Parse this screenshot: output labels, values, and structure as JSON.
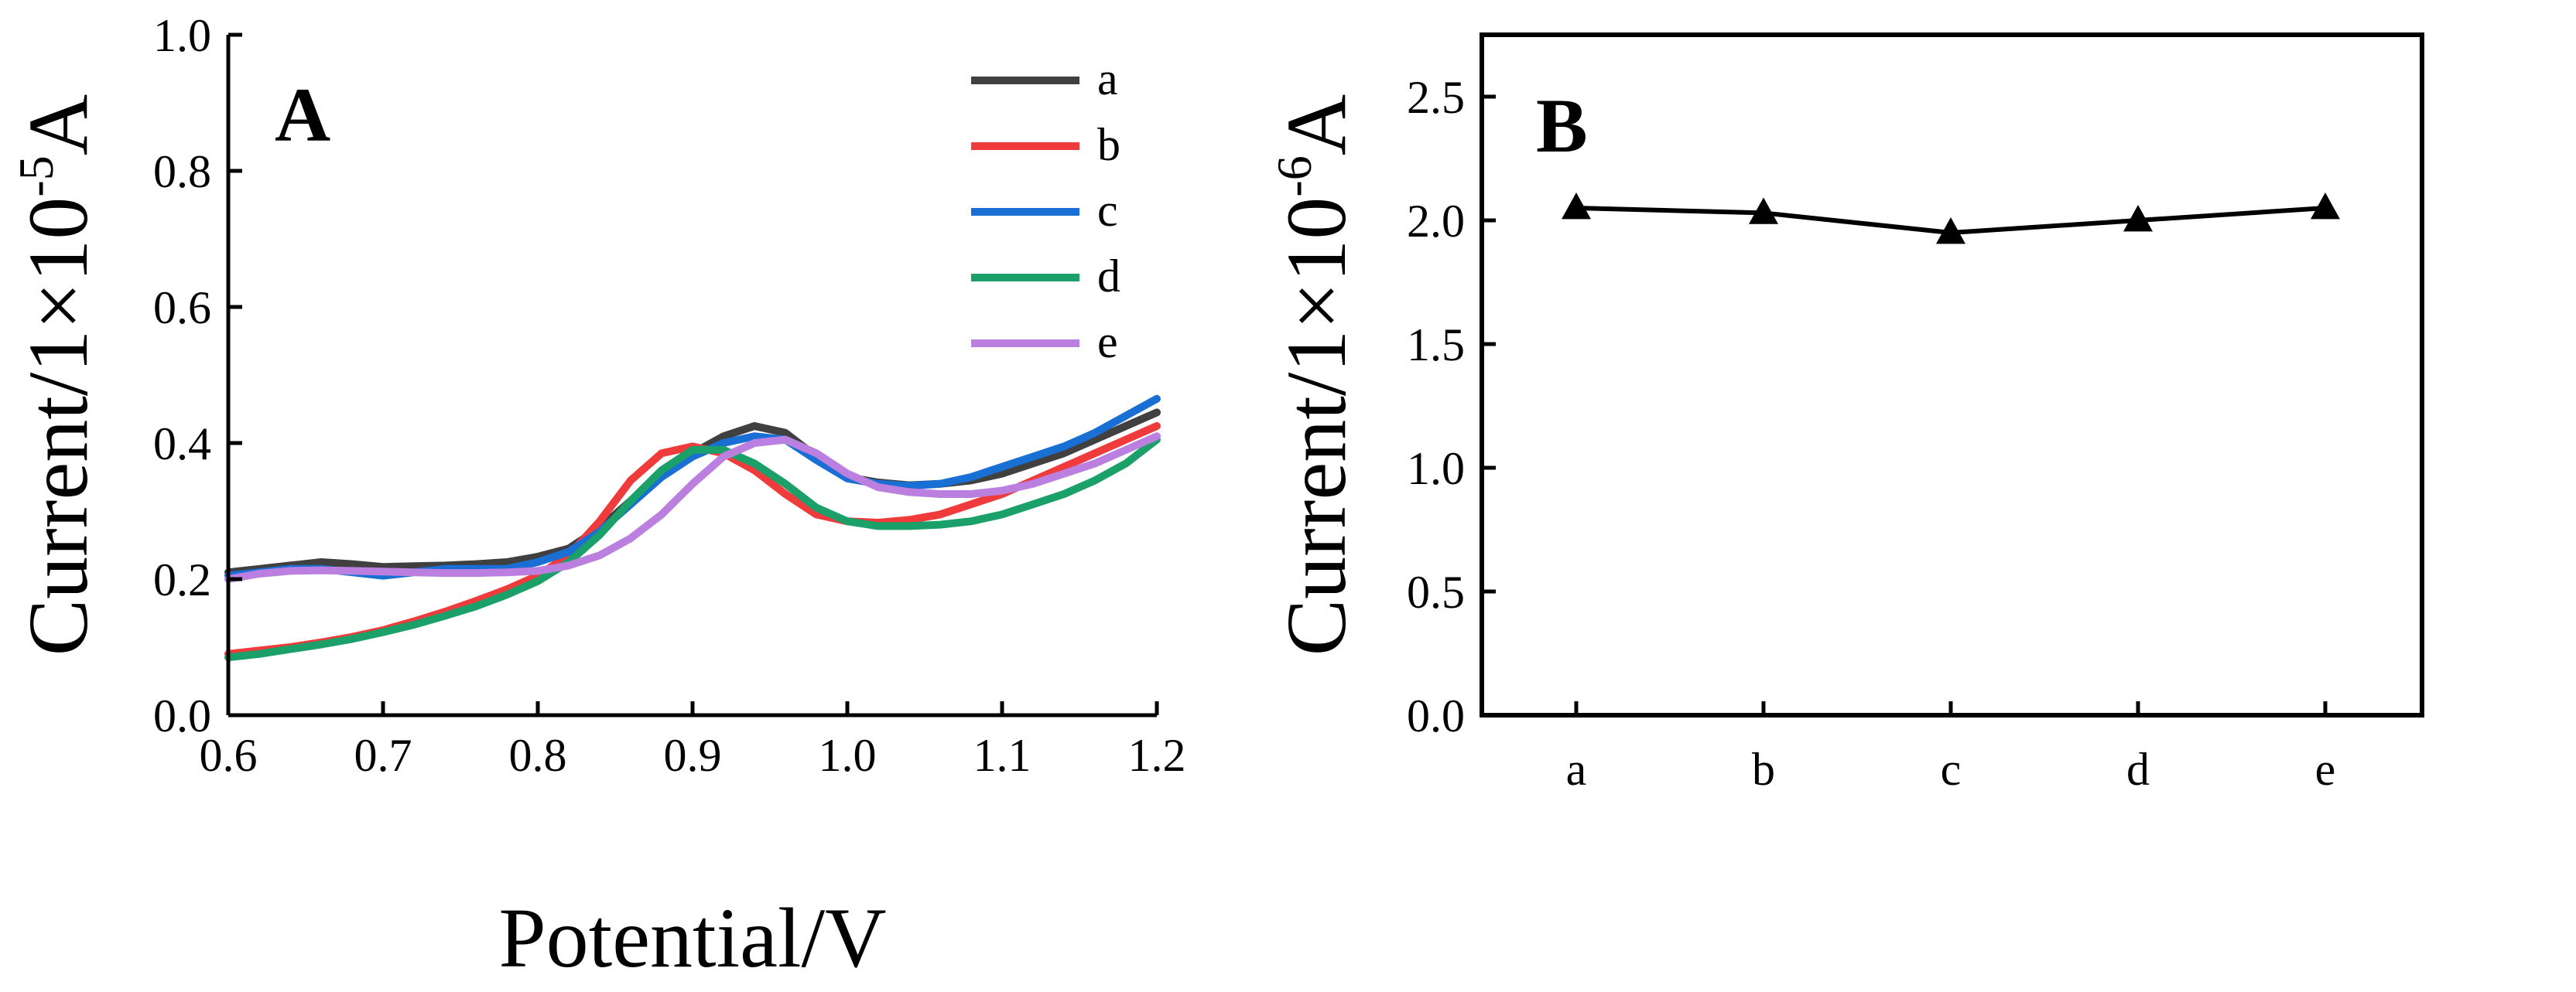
{
  "chart_data": [
    {
      "panel_label": "A",
      "type": "line",
      "xlabel": "Potential/V",
      "ylabel_parts": {
        "base": "Current/1×10",
        "exp": "-5",
        "unit": "A"
      },
      "xlim": [
        0.6,
        1.2
      ],
      "ylim": [
        0.0,
        1.0
      ],
      "xticks": [
        "0.6",
        "0.7",
        "0.8",
        "0.9",
        "1.0",
        "1.1",
        "1.2"
      ],
      "yticks": [
        "0.0",
        "0.2",
        "0.4",
        "0.6",
        "0.8",
        "1.0"
      ],
      "legend_position": "top-right",
      "x": [
        0.6,
        0.62,
        0.64,
        0.66,
        0.68,
        0.7,
        0.72,
        0.74,
        0.76,
        0.78,
        0.8,
        0.82,
        0.84,
        0.86,
        0.88,
        0.9,
        0.92,
        0.94,
        0.96,
        0.98,
        1.0,
        1.02,
        1.04,
        1.06,
        1.08,
        1.1,
        1.12,
        1.14,
        1.16,
        1.18,
        1.2
      ],
      "series": [
        {
          "name": "a",
          "color": "#404040",
          "values": [
            0.21,
            0.215,
            0.22,
            0.225,
            0.222,
            0.218,
            0.219,
            0.22,
            0.222,
            0.225,
            0.233,
            0.245,
            0.275,
            0.315,
            0.355,
            0.385,
            0.41,
            0.425,
            0.415,
            0.38,
            0.35,
            0.342,
            0.338,
            0.34,
            0.345,
            0.355,
            0.37,
            0.385,
            0.405,
            0.425,
            0.445
          ]
        },
        {
          "name": "b",
          "color": "#ef3b3b",
          "values": [
            0.09,
            0.095,
            0.1,
            0.107,
            0.115,
            0.125,
            0.138,
            0.152,
            0.168,
            0.185,
            0.205,
            0.235,
            0.285,
            0.345,
            0.385,
            0.395,
            0.385,
            0.36,
            0.325,
            0.295,
            0.285,
            0.283,
            0.287,
            0.295,
            0.31,
            0.325,
            0.345,
            0.365,
            0.385,
            0.405,
            0.425
          ]
        },
        {
          "name": "c",
          "color": "#1a6fd4",
          "values": [
            0.205,
            0.21,
            0.215,
            0.215,
            0.21,
            0.205,
            0.21,
            0.215,
            0.215,
            0.215,
            0.225,
            0.24,
            0.27,
            0.31,
            0.35,
            0.38,
            0.4,
            0.41,
            0.405,
            0.375,
            0.348,
            0.34,
            0.337,
            0.34,
            0.35,
            0.365,
            0.38,
            0.395,
            0.415,
            0.44,
            0.465
          ]
        },
        {
          "name": "d",
          "color": "#1aa068",
          "values": [
            0.085,
            0.09,
            0.097,
            0.104,
            0.112,
            0.122,
            0.133,
            0.146,
            0.16,
            0.177,
            0.197,
            0.225,
            0.265,
            0.315,
            0.36,
            0.39,
            0.39,
            0.37,
            0.34,
            0.305,
            0.285,
            0.278,
            0.278,
            0.28,
            0.285,
            0.295,
            0.31,
            0.325,
            0.345,
            0.37,
            0.405
          ]
        },
        {
          "name": "e",
          "color": "#bb7fe0",
          "values": [
            0.2,
            0.208,
            0.212,
            0.213,
            0.212,
            0.211,
            0.21,
            0.209,
            0.209,
            0.21,
            0.212,
            0.22,
            0.235,
            0.26,
            0.295,
            0.34,
            0.38,
            0.4,
            0.405,
            0.385,
            0.355,
            0.335,
            0.328,
            0.325,
            0.325,
            0.33,
            0.34,
            0.355,
            0.37,
            0.39,
            0.41
          ]
        }
      ]
    },
    {
      "panel_label": "B",
      "type": "line",
      "marker": "triangle",
      "xlabel": "",
      "ylabel_parts": {
        "base": "Current/1×10",
        "exp": "-6",
        "unit": "A"
      },
      "ylim": [
        0.0,
        2.75
      ],
      "yticks": [
        "0.0",
        "0.5",
        "1.0",
        "1.5",
        "2.0",
        "2.5"
      ],
      "categories": [
        "a",
        "b",
        "c",
        "d",
        "e"
      ],
      "values": [
        2.05,
        2.03,
        1.95,
        2.0,
        2.05
      ],
      "color": "#000000"
    }
  ]
}
